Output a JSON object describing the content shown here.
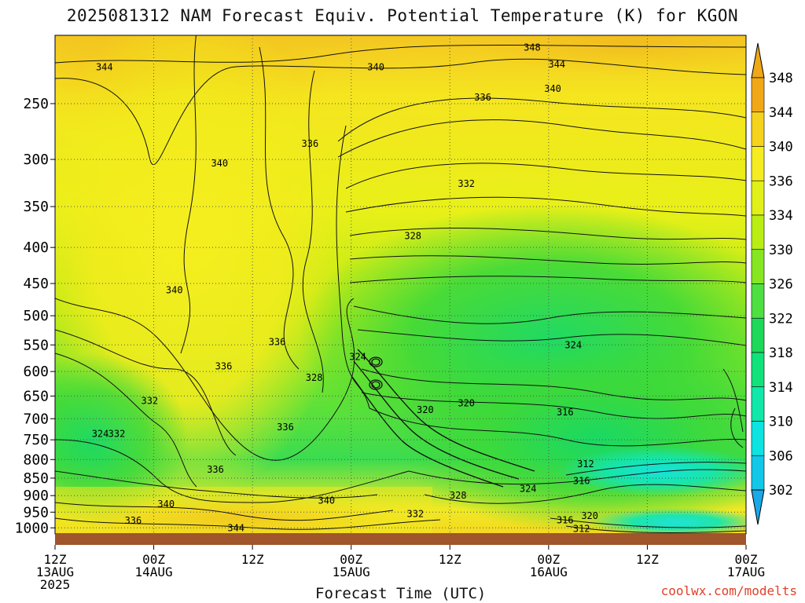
{
  "title": "2025081312 NAM Forecast Equiv. Potential Temperature (K) for KGON",
  "credit": "coolwx.com/modelts",
  "chart_data": {
    "type": "heatmap",
    "title": "2025081312 NAM Forecast Equiv. Potential Temperature (K) for KGON",
    "xlabel": "Forecast Time (UTC)",
    "ylabel": "",
    "x_ticks": [
      {
        "hour": 0,
        "label": [
          "12Z",
          "13AUG",
          "2025"
        ]
      },
      {
        "hour": 12,
        "label": [
          "00Z",
          "14AUG"
        ]
      },
      {
        "hour": 24,
        "label": [
          "12Z"
        ]
      },
      {
        "hour": 36,
        "label": [
          "00Z",
          "15AUG"
        ]
      },
      {
        "hour": 48,
        "label": [
          "12Z"
        ]
      },
      {
        "hour": 60,
        "label": [
          "00Z",
          "16AUG"
        ]
      },
      {
        "hour": 72,
        "label": [
          "12Z"
        ]
      },
      {
        "hour": 84,
        "label": [
          "00Z",
          "17AUG"
        ]
      }
    ],
    "xlim": [
      0,
      84
    ],
    "y_ticks": [
      250,
      300,
      350,
      400,
      450,
      500,
      550,
      600,
      650,
      700,
      750,
      800,
      850,
      900,
      950,
      1000
    ],
    "ylim": [
      200,
      1020
    ],
    "y_scale": "log-pressure",
    "grid": true,
    "colorbar": {
      "labels": [
        302,
        306,
        310,
        314,
        318,
        322,
        326,
        330,
        334,
        336,
        340,
        344,
        348
      ],
      "colors": [
        "#1aa9e8",
        "#11c8e8",
        "#0de3e0",
        "#0fe8a8",
        "#12e27a",
        "#1ed85a",
        "#4ee040",
        "#85e621",
        "#b8ee14",
        "#e0f018",
        "#f6ec22",
        "#f5d21c",
        "#f0a818"
      ]
    },
    "contour_labels": [
      {
        "value": "344",
        "hour": 6,
        "p": 222
      },
      {
        "value": "340",
        "hour": 39,
        "p": 222
      },
      {
        "value": "348",
        "hour": 58,
        "p": 208
      },
      {
        "value": "344",
        "hour": 61,
        "p": 220
      },
      {
        "value": "340",
        "hour": 60.5,
        "p": 238
      },
      {
        "value": "336",
        "hour": 52,
        "p": 245
      },
      {
        "value": "336",
        "hour": 31,
        "p": 285
      },
      {
        "value": "340",
        "hour": 20,
        "p": 304
      },
      {
        "value": "332",
        "hour": 50,
        "p": 325
      },
      {
        "value": "328",
        "hour": 43.5,
        "p": 385
      },
      {
        "value": "340",
        "hour": 14.5,
        "p": 460
      },
      {
        "value": "336",
        "hour": 27,
        "p": 545
      },
      {
        "value": "324",
        "hour": 63,
        "p": 550
      },
      {
        "value": "324",
        "hour": 36.8,
        "p": 572
      },
      {
        "value": "336",
        "hour": 20.5,
        "p": 590
      },
      {
        "value": "328",
        "hour": 31.5,
        "p": 612
      },
      {
        "value": "332",
        "hour": 11.5,
        "p": 660
      },
      {
        "value": "320",
        "hour": 45,
        "p": 680
      },
      {
        "value": "320",
        "hour": 50,
        "p": 665
      },
      {
        "value": "316",
        "hour": 62,
        "p": 685
      },
      {
        "value": "336",
        "hour": 28,
        "p": 720
      },
      {
        "value": "324",
        "hour": 5.5,
        "p": 735
      },
      {
        "value": "332",
        "hour": 7.5,
        "p": 735
      },
      {
        "value": "312",
        "hour": 64.5,
        "p": 812
      },
      {
        "value": "336",
        "hour": 19.5,
        "p": 827
      },
      {
        "value": "316",
        "hour": 64,
        "p": 858
      },
      {
        "value": "324",
        "hour": 57.5,
        "p": 880
      },
      {
        "value": "328",
        "hour": 49,
        "p": 900
      },
      {
        "value": "340",
        "hour": 33,
        "p": 915
      },
      {
        "value": "340",
        "hour": 13.5,
        "p": 925
      },
      {
        "value": "332",
        "hour": 43.8,
        "p": 955
      },
      {
        "value": "336",
        "hour": 9.5,
        "p": 977
      },
      {
        "value": "316",
        "hour": 62,
        "p": 975
      },
      {
        "value": "320",
        "hour": 65,
        "p": 962
      },
      {
        "value": "344",
        "hour": 22,
        "p": 1000
      },
      {
        "value": "312",
        "hour": 64,
        "p": 1003
      }
    ]
  }
}
